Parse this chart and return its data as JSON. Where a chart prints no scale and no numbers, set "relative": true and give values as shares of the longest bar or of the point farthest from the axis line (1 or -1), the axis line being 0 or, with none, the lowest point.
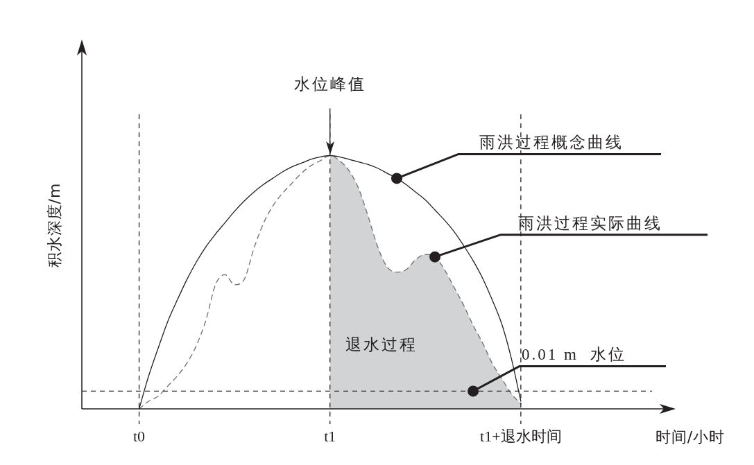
{
  "chart_data": {
    "type": "line",
    "relative": true,
    "categories": [
      null,
      null,
      null,
      null,
      null,
      null,
      "t0",
      null,
      null,
      null,
      null,
      null,
      null,
      null,
      null,
      null,
      null,
      null,
      null,
      null,
      null,
      null,
      null,
      null,
      null,
      null,
      "t1",
      null,
      null,
      null,
      null,
      null,
      null,
      null,
      null,
      null,
      null,
      null,
      null,
      null,
      null,
      null,
      null,
      null,
      null,
      null,
      "t1+退水时间",
      null,
      null,
      null,
      null,
      null,
      null,
      null,
      null,
      null,
      null,
      null,
      null,
      null,
      null,
      null,
      null
    ],
    "series": [
      {
        "name": "雨洪过程概念曲线",
        "type": "line",
        "color": "#231f20",
        "line_style": "solid",
        "values": [
          null,
          null,
          null,
          null,
          null,
          null,
          0,
          0.13,
          0.24,
          0.345,
          0.43,
          0.51,
          0.58,
          0.64,
          0.69,
          0.735,
          0.78,
          0.82,
          0.855,
          0.885,
          0.91,
          0.935,
          0.955,
          0.97,
          0.985,
          0.995,
          1,
          0.995,
          0.985,
          0.975,
          0.965,
          0.95,
          0.93,
          0.91,
          0.885,
          0.855,
          0.825,
          0.785,
          0.745,
          0.7,
          0.645,
          0.585,
          0.515,
          0.43,
          0.335,
          0.2,
          0.03,
          null,
          null,
          null,
          null,
          null,
          null,
          null,
          null,
          null,
          null,
          null,
          null,
          null,
          null,
          null,
          null
        ]
      },
      {
        "name": "雨洪过程实际曲线",
        "type": "line",
        "color": "#6d6e71",
        "line_style": "dashed",
        "values": [
          null,
          null,
          null,
          null,
          null,
          null,
          0,
          0.03,
          0.05,
          0.09,
          0.13,
          0.18,
          0.25,
          0.35,
          0.49,
          0.53,
          0.49,
          0.51,
          0.63,
          0.73,
          0.8,
          0.85,
          0.89,
          0.93,
          0.96,
          0.98,
          1,
          0.98,
          0.94,
          0.87,
          0.76,
          0.64,
          0.56,
          0.54,
          0.55,
          0.59,
          0.61,
          0.6,
          0.55,
          0.48,
          0.41,
          0.33,
          0.26,
          0.18,
          0.12,
          0.06,
          0.02,
          null,
          null,
          null,
          null,
          null,
          null,
          null,
          null,
          null,
          null,
          null,
          null,
          null,
          null,
          null,
          null
        ]
      },
      {
        "name": "退水过程",
        "type": "area",
        "color": "#d1d3d4",
        "values": [
          null,
          null,
          null,
          null,
          null,
          null,
          null,
          null,
          null,
          null,
          null,
          null,
          null,
          null,
          null,
          null,
          null,
          null,
          null,
          null,
          null,
          null,
          null,
          null,
          null,
          null,
          1,
          0.98,
          0.94,
          0.87,
          0.76,
          0.64,
          0.56,
          0.54,
          0.55,
          0.59,
          0.61,
          0.6,
          0.55,
          0.48,
          0.41,
          0.33,
          0.26,
          0.18,
          0.12,
          0.06,
          0.02,
          null,
          null,
          null,
          null,
          null,
          null,
          null,
          null,
          null,
          null,
          null,
          null,
          null,
          null,
          null,
          null
        ]
      }
    ],
    "xlabel": "时间/小时",
    "ylabel": "积水深度/m",
    "annotations": [
      {
        "text": "水位峰值",
        "x": "t1"
      }
    ],
    "ref_lines": [
      {
        "axis": "x",
        "value": "t0",
        "color": "#231f20",
        "line_style": "dashed"
      },
      {
        "axis": "x",
        "value": "t1",
        "color": "#231f20",
        "line_style": "dashed"
      },
      {
        "axis": "x",
        "value": "t1+退水时间",
        "color": "#231f20",
        "line_style": "dashed"
      },
      {
        "axis": "y",
        "value": 0.07,
        "label": "0.01 m  水位",
        "color": "#231f20",
        "line_style": "dashed"
      }
    ],
    "marker": "none",
    "tick_labels": "x"
  }
}
